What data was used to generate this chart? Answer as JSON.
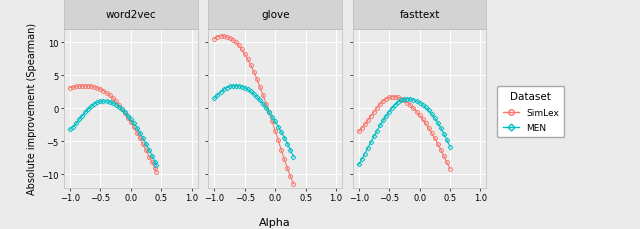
{
  "panels": [
    "word2vec",
    "glove",
    "fasttext"
  ],
  "xlim": [
    -1.1,
    1.1
  ],
  "ylim": [
    -12,
    12
  ],
  "yticks": [
    -10,
    -5,
    0,
    5,
    10
  ],
  "xticks": [
    -1.0,
    -0.5,
    0.0,
    0.5,
    1.0
  ],
  "xlabel": "Alpha",
  "ylabel": "Absolute improvement (Spearman)",
  "color_simlex": "#F8766D",
  "color_men": "#00BFC4",
  "background_panel": "#EBEBEB",
  "background_strip": "#D3D3D3",
  "grid_color": "#FFFFFF",
  "legend_title": "Dataset",
  "word2vec_simlex_x": [
    -1.0,
    -0.95,
    -0.9,
    -0.85,
    -0.8,
    -0.75,
    -0.7,
    -0.65,
    -0.6,
    -0.55,
    -0.5,
    -0.45,
    -0.4,
    -0.35,
    -0.3,
    -0.25,
    -0.2,
    -0.15,
    -0.1,
    -0.05,
    0.0,
    0.05,
    0.1,
    0.15,
    0.2,
    0.25,
    0.3,
    0.35,
    0.4,
    0.42
  ],
  "word2vec_simlex_y": [
    3.1,
    3.2,
    3.3,
    3.35,
    3.4,
    3.4,
    3.38,
    3.32,
    3.22,
    3.08,
    2.9,
    2.65,
    2.35,
    2.0,
    1.55,
    1.05,
    0.5,
    -0.1,
    -0.75,
    -1.45,
    -2.15,
    -2.9,
    -3.7,
    -4.55,
    -5.45,
    -6.35,
    -7.3,
    -8.2,
    -9.1,
    -9.6
  ],
  "word2vec_men_x": [
    -1.0,
    -0.95,
    -0.9,
    -0.85,
    -0.8,
    -0.75,
    -0.7,
    -0.65,
    -0.6,
    -0.55,
    -0.5,
    -0.45,
    -0.4,
    -0.35,
    -0.3,
    -0.25,
    -0.2,
    -0.15,
    -0.1,
    -0.05,
    0.0,
    0.05,
    0.1,
    0.15,
    0.2,
    0.25,
    0.3,
    0.35,
    0.4,
    0.42
  ],
  "word2vec_men_y": [
    -3.2,
    -2.8,
    -2.3,
    -1.7,
    -1.15,
    -0.6,
    -0.1,
    0.3,
    0.65,
    0.9,
    1.05,
    1.1,
    1.1,
    1.0,
    0.8,
    0.55,
    0.2,
    -0.15,
    -0.6,
    -1.1,
    -1.65,
    -2.25,
    -2.95,
    -3.7,
    -4.5,
    -5.35,
    -6.25,
    -7.15,
    -8.1,
    -8.6
  ],
  "glove_simlex_x": [
    -1.0,
    -0.95,
    -0.9,
    -0.85,
    -0.8,
    -0.75,
    -0.7,
    -0.65,
    -0.6,
    -0.55,
    -0.5,
    -0.45,
    -0.4,
    -0.35,
    -0.3,
    -0.25,
    -0.2,
    -0.15,
    -0.1,
    -0.05,
    0.0,
    0.05,
    0.1,
    0.15,
    0.2,
    0.25,
    0.3
  ],
  "glove_simlex_y": [
    10.5,
    10.85,
    10.95,
    10.95,
    10.85,
    10.65,
    10.35,
    10.0,
    9.5,
    8.9,
    8.2,
    7.4,
    6.5,
    5.5,
    4.4,
    3.2,
    2.0,
    0.7,
    -0.6,
    -2.0,
    -3.4,
    -4.85,
    -6.3,
    -7.7,
    -9.05,
    -10.3,
    -11.4
  ],
  "glove_men_x": [
    -1.0,
    -0.95,
    -0.9,
    -0.85,
    -0.8,
    -0.75,
    -0.7,
    -0.65,
    -0.6,
    -0.55,
    -0.5,
    -0.45,
    -0.4,
    -0.35,
    -0.3,
    -0.25,
    -0.2,
    -0.15,
    -0.1,
    -0.05,
    0.0,
    0.05,
    0.1,
    0.15,
    0.2,
    0.25,
    0.3
  ],
  "glove_men_y": [
    1.5,
    2.0,
    2.45,
    2.85,
    3.1,
    3.3,
    3.4,
    3.42,
    3.38,
    3.28,
    3.1,
    2.85,
    2.55,
    2.15,
    1.7,
    1.2,
    0.65,
    0.05,
    -0.6,
    -1.3,
    -2.0,
    -2.8,
    -3.6,
    -4.45,
    -5.35,
    -6.3,
    -7.3
  ],
  "fasttext_simlex_x": [
    -1.0,
    -0.95,
    -0.9,
    -0.85,
    -0.8,
    -0.75,
    -0.7,
    -0.65,
    -0.6,
    -0.55,
    -0.5,
    -0.45,
    -0.4,
    -0.35,
    -0.3,
    -0.25,
    -0.2,
    -0.15,
    -0.1,
    -0.05,
    0.0,
    0.05,
    0.1,
    0.15,
    0.2,
    0.25,
    0.3,
    0.35,
    0.4,
    0.45,
    0.5
  ],
  "fasttext_simlex_y": [
    -3.5,
    -3.0,
    -2.4,
    -1.8,
    -1.1,
    -0.5,
    0.1,
    0.65,
    1.1,
    1.45,
    1.65,
    1.75,
    1.75,
    1.65,
    1.45,
    1.2,
    0.85,
    0.45,
    0.0,
    -0.5,
    -1.05,
    -1.65,
    -2.3,
    -3.0,
    -3.75,
    -4.55,
    -5.4,
    -6.3,
    -7.25,
    -8.2,
    -9.15
  ],
  "fasttext_men_x": [
    -1.0,
    -0.95,
    -0.9,
    -0.85,
    -0.8,
    -0.75,
    -0.7,
    -0.65,
    -0.6,
    -0.55,
    -0.5,
    -0.45,
    -0.4,
    -0.35,
    -0.3,
    -0.25,
    -0.2,
    -0.15,
    -0.1,
    -0.05,
    0.0,
    0.05,
    0.1,
    0.15,
    0.2,
    0.25,
    0.3,
    0.35,
    0.4,
    0.45,
    0.5
  ],
  "fasttext_men_y": [
    -8.5,
    -7.7,
    -6.85,
    -6.0,
    -5.1,
    -4.25,
    -3.4,
    -2.6,
    -1.85,
    -1.15,
    -0.5,
    0.05,
    0.55,
    0.95,
    1.2,
    1.4,
    1.45,
    1.4,
    1.3,
    1.1,
    0.85,
    0.55,
    0.15,
    -0.3,
    -0.85,
    -1.5,
    -2.2,
    -3.0,
    -3.85,
    -4.8,
    -5.8
  ]
}
